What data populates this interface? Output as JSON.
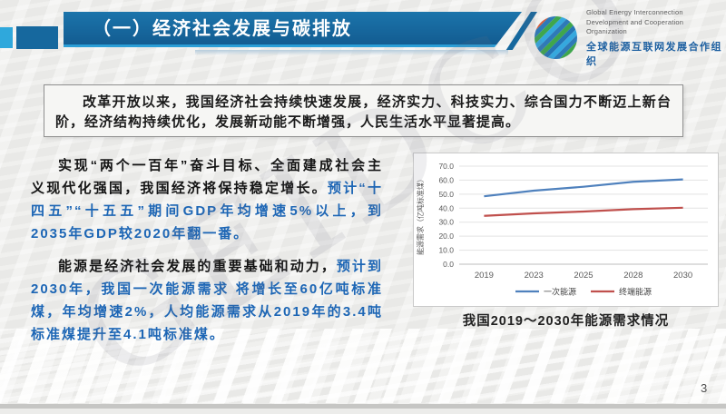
{
  "header": {
    "title": "（一）经济社会发展与碳排放",
    "logo": {
      "en1": "Global Energy Interconnection",
      "en2": "Development and Cooperation Organization",
      "zh": "全球能源互联网发展合作组织"
    }
  },
  "intro": {
    "text": "改革开放以来，我国经济社会持续快速发展，经济实力、科技实力、综合国力不断迈上新台阶，经济结构持续优化，发展新动能不断增强，人民生活水平显著提高。"
  },
  "paragraphs": [
    {
      "black": "实现“两个一百年”奋斗目标、全面建成社会主义现代化强国，我国经济将保持稳定增长。",
      "blue": "预计“十四五”“十五五”期间GDP年均增速5%以上，到2035年GDP较2020年翻一番。"
    },
    {
      "black": "能源是经济社会发展的重要基础和动力，",
      "blue": "预计到2030年，我国一次能源需求 将增长至60亿吨标准煤，年均增速2%，人均能源需求从2019年的3.4吨标准煤提升至4.1吨标准煤。"
    }
  ],
  "chart": {
    "caption": "我国2019～2030年能源需求情况"
  },
  "chart_data": {
    "type": "line",
    "categories": [
      "2019",
      "2023",
      "2025",
      "2028",
      "2030"
    ],
    "series": [
      {
        "name": "一次能源",
        "color": "#4f81bd",
        "values": [
          48.5,
          52.5,
          55.3,
          58.8,
          60.5
        ]
      },
      {
        "name": "终端能源",
        "color": "#c0504d",
        "values": [
          34.5,
          36.3,
          37.6,
          39.3,
          40.3
        ]
      }
    ],
    "title": "",
    "xlabel": "",
    "ylabel": "能源需求（亿吨标准煤）",
    "ylim": [
      0,
      70
    ],
    "ytick_step": 10,
    "grid": true,
    "legend_position": "bottom"
  },
  "footer": {
    "page_number": "3"
  },
  "watermark": {
    "text": "GEIDCO"
  },
  "colors": {
    "banner_blue": "#16689e",
    "accent_cyan": "#2b9ed6",
    "text_blue": "#1d66b5",
    "series_primary": "#4f81bd",
    "series_final": "#c0504d"
  }
}
